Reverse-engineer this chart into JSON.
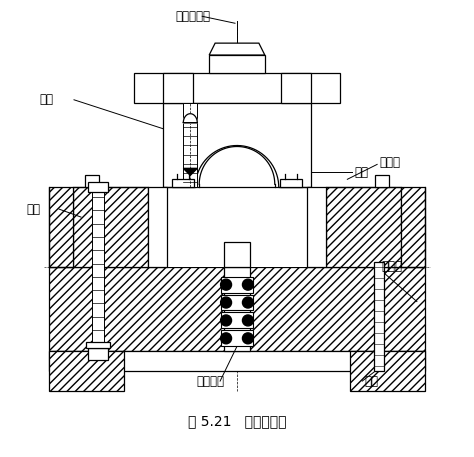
{
  "title": "图 5.21   弯形模结构",
  "labels": {
    "upper_handle": "上模板模柄",
    "screw": "螺钉",
    "convex_die": "凸模",
    "concave_die": "凹模",
    "positioning_plate": "定位板",
    "lower_base": "下模座",
    "spring": "卸料弹簧",
    "ejector": "顶杆"
  },
  "bg_color": "#ffffff",
  "line_color": "#000000",
  "title_fontsize": 10,
  "label_fontsize": 8.5
}
